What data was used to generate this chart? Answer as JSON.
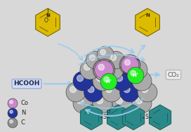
{
  "bg_color": "#d8d8d8",
  "hcooh_text": "HCOOH",
  "co2_text": "CO₂",
  "legend_items": [
    [
      "Co",
      "#cc88cc"
    ],
    [
      "N",
      "#223399"
    ],
    [
      "C",
      "#909090"
    ]
  ],
  "arrow_color": "#99ccee",
  "hplus_color": "#22ee22",
  "molecule_color": "#2a8a8a",
  "pyridine_color": "#ddbb00",
  "label_box_color": "#ccddff",
  "gray_sphere": "#aaaaaa",
  "blue_sphere": "#223399",
  "pink_sphere": "#cc88cc",
  "dark_sphere": "#555555"
}
